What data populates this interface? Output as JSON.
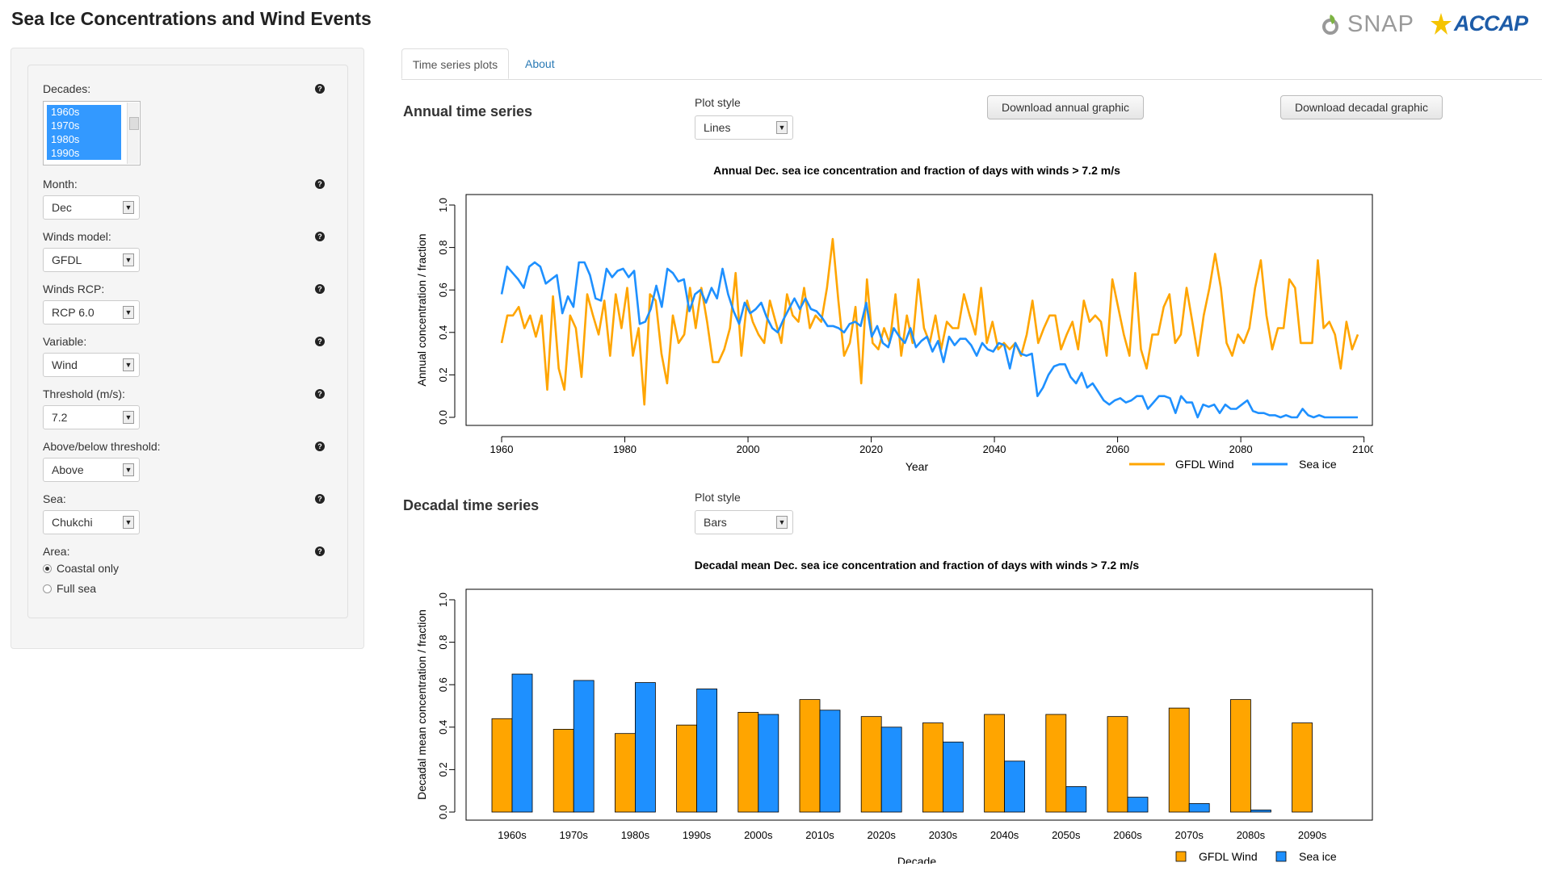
{
  "app": {
    "title": "Sea Ice Concentrations and Wind Events",
    "logo_snap": "SNAP",
    "logo_accap": "ACCAP"
  },
  "sidebar": {
    "decades": {
      "label": "Decades:",
      "options": [
        "1960s",
        "1970s",
        "1980s",
        "1990s"
      ]
    },
    "month": {
      "label": "Month:",
      "value": "Dec"
    },
    "winds_model": {
      "label": "Winds model:",
      "value": "GFDL"
    },
    "winds_rcp": {
      "label": "Winds RCP:",
      "value": "RCP 6.0"
    },
    "variable": {
      "label": "Variable:",
      "value": "Wind"
    },
    "threshold": {
      "label": "Threshold (m/s):",
      "value": "7.2"
    },
    "above_below": {
      "label": "Above/below threshold:",
      "value": "Above"
    },
    "sea": {
      "label": "Sea:",
      "value": "Chukchi"
    },
    "area": {
      "label": "Area:",
      "options": [
        "Coastal only",
        "Full sea"
      ],
      "selected": "Coastal only"
    },
    "help_glyph": "?"
  },
  "tabs": [
    {
      "label": "Time series plots",
      "active": true
    },
    {
      "label": "About",
      "active": false
    }
  ],
  "annual": {
    "heading": "Annual time series",
    "plot_style_label": "Plot style",
    "plot_style": "Lines",
    "download_annual": "Download annual graphic",
    "download_decadal": "Download decadal graphic"
  },
  "decadal": {
    "heading": "Decadal time series",
    "plot_style_label": "Plot style",
    "plot_style": "Bars"
  },
  "colors": {
    "wind": "#FFA500",
    "ice": "#1E90FF"
  },
  "chart_data": [
    {
      "type": "line",
      "title": "Annual Dec. sea ice concentration and fraction of days with winds > 7.2 m/s",
      "xlabel": "Year",
      "ylabel": "Annual concentration / fraction",
      "xlim": [
        1960,
        2099
      ],
      "ylim": [
        0,
        1
      ],
      "xticks": [
        "1960",
        "1980",
        "2000",
        "2020",
        "2040",
        "2060",
        "2080",
        "2100"
      ],
      "yticks": [
        "0.0",
        "0.2",
        "0.4",
        "0.6",
        "0.8",
        "1.0"
      ],
      "legend": "bottom-right",
      "grid": false,
      "x_start": 1960,
      "series": [
        {
          "name": "GFDL Wind",
          "color": "#FFA500",
          "values": [
            0.35,
            0.48,
            0.48,
            0.52,
            0.42,
            0.48,
            0.38,
            0.48,
            0.13,
            0.57,
            0.23,
            0.13,
            0.48,
            0.42,
            0.19,
            0.58,
            0.48,
            0.39,
            0.55,
            0.29,
            0.58,
            0.42,
            0.61,
            0.29,
            0.42,
            0.06,
            0.58,
            0.55,
            0.3,
            0.16,
            0.48,
            0.35,
            0.39,
            0.61,
            0.42,
            0.61,
            0.45,
            0.26,
            0.26,
            0.32,
            0.42,
            0.68,
            0.29,
            0.55,
            0.45,
            0.39,
            0.35,
            0.55,
            0.45,
            0.35,
            0.58,
            0.48,
            0.45,
            0.61,
            0.42,
            0.48,
            0.45,
            0.61,
            0.84,
            0.55,
            0.29,
            0.35,
            0.52,
            0.16,
            0.65,
            0.35,
            0.32,
            0.42,
            0.35,
            0.58,
            0.29,
            0.48,
            0.35,
            0.65,
            0.42,
            0.35,
            0.48,
            0.32,
            0.45,
            0.42,
            0.42,
            0.58,
            0.48,
            0.39,
            0.61,
            0.35,
            0.45,
            0.32,
            0.35,
            0.32,
            0.35,
            0.29,
            0.39,
            0.55,
            0.35,
            0.42,
            0.48,
            0.48,
            0.32,
            0.39,
            0.45,
            0.32,
            0.55,
            0.45,
            0.48,
            0.45,
            0.29,
            0.65,
            0.52,
            0.39,
            0.29,
            0.68,
            0.32,
            0.23,
            0.39,
            0.39,
            0.52,
            0.58,
            0.35,
            0.39,
            0.61,
            0.45,
            0.29,
            0.48,
            0.61,
            0.77,
            0.61,
            0.35,
            0.29,
            0.39,
            0.35,
            0.42,
            0.61,
            0.74,
            0.48,
            0.32,
            0.42,
            0.42,
            0.65,
            0.61,
            0.35,
            0.35,
            0.35,
            0.74,
            0.42,
            0.45,
            0.39,
            0.23,
            0.45,
            0.32,
            0.39
          ]
        },
        {
          "name": "Sea ice",
          "color": "#1E90FF",
          "values": [
            0.58,
            0.71,
            0.68,
            0.65,
            0.61,
            0.71,
            0.73,
            0.71,
            0.63,
            0.65,
            0.67,
            0.49,
            0.57,
            0.52,
            0.73,
            0.73,
            0.67,
            0.56,
            0.55,
            0.7,
            0.66,
            0.69,
            0.7,
            0.66,
            0.69,
            0.44,
            0.45,
            0.51,
            0.62,
            0.52,
            0.7,
            0.68,
            0.64,
            0.65,
            0.5,
            0.58,
            0.6,
            0.54,
            0.61,
            0.56,
            0.7,
            0.58,
            0.5,
            0.44,
            0.54,
            0.49,
            0.51,
            0.54,
            0.47,
            0.42,
            0.4,
            0.46,
            0.51,
            0.56,
            0.51,
            0.56,
            0.51,
            0.5,
            0.47,
            0.43,
            0.43,
            0.42,
            0.4,
            0.44,
            0.45,
            0.43,
            0.54,
            0.38,
            0.43,
            0.35,
            0.33,
            0.42,
            0.38,
            0.35,
            0.42,
            0.33,
            0.36,
            0.38,
            0.31,
            0.36,
            0.26,
            0.38,
            0.34,
            0.37,
            0.37,
            0.34,
            0.29,
            0.35,
            0.32,
            0.31,
            0.35,
            0.34,
            0.23,
            0.35,
            0.3,
            0.29,
            0.3,
            0.1,
            0.14,
            0.2,
            0.24,
            0.25,
            0.25,
            0.19,
            0.16,
            0.21,
            0.14,
            0.16,
            0.12,
            0.08,
            0.06,
            0.08,
            0.09,
            0.07,
            0.08,
            0.1,
            0.1,
            0.04,
            0.07,
            0.1,
            0.1,
            0.09,
            0.02,
            0.1,
            0.07,
            0.07,
            0.0,
            0.06,
            0.05,
            0.06,
            0.02,
            0.06,
            0.04,
            0.04,
            0.06,
            0.08,
            0.03,
            0.02,
            0.02,
            0.01,
            0.01,
            0.0,
            0.01,
            0.0,
            0.0,
            0.04,
            0.01,
            0.0,
            0.01,
            0.0,
            0.0,
            0.0,
            0.0,
            0.0,
            0.0,
            0.0
          ]
        }
      ]
    },
    {
      "type": "bar",
      "title": "Decadal mean Dec. sea ice concentration and fraction of days with winds > 7.2 m/s",
      "xlabel": "Decade",
      "ylabel": "Decadal mean concentration / fraction",
      "ylim": [
        0,
        1
      ],
      "yticks": [
        "0.0",
        "0.2",
        "0.4",
        "0.6",
        "0.8",
        "1.0"
      ],
      "legend": "bottom-right",
      "grid": false,
      "categories": [
        "1960s",
        "1970s",
        "1980s",
        "1990s",
        "2000s",
        "2010s",
        "2020s",
        "2030s",
        "2040s",
        "2050s",
        "2060s",
        "2070s",
        "2080s",
        "2090s"
      ],
      "series": [
        {
          "name": "GFDL Wind",
          "color": "#FFA500",
          "values": [
            0.44,
            0.39,
            0.37,
            0.41,
            0.47,
            0.53,
            0.45,
            0.42,
            0.46,
            0.46,
            0.45,
            0.49,
            0.53,
            0.42
          ]
        },
        {
          "name": "Sea ice",
          "color": "#1E90FF",
          "values": [
            0.65,
            0.62,
            0.61,
            0.58,
            0.46,
            0.48,
            0.4,
            0.33,
            0.24,
            0.12,
            0.07,
            0.04,
            0.01,
            0.0
          ]
        }
      ]
    }
  ]
}
